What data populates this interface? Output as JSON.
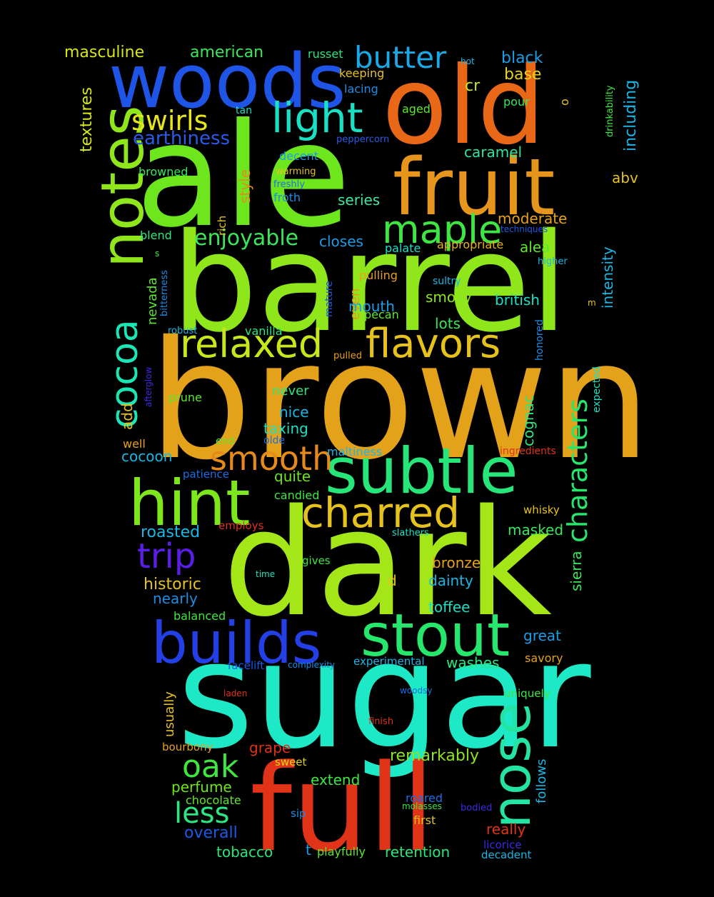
{
  "words": [
    {
      "text": "brown",
      "color": "#e3a21a"
    },
    {
      "text": "sugar",
      "color": "#1de9c6"
    },
    {
      "text": "dark",
      "color": "#a5e619"
    },
    {
      "text": "barrel",
      "color": "#8ee61b"
    },
    {
      "text": "ale",
      "color": "#6de61d"
    },
    {
      "text": "full",
      "color": "#e03318"
    },
    {
      "text": "old",
      "color": "#e86818"
    },
    {
      "text": "woods",
      "color": "#1f55e6"
    },
    {
      "text": "fruit",
      "color": "#e6961c"
    },
    {
      "text": "subtle",
      "color": "#26e67a"
    },
    {
      "text": "hint",
      "color": "#7ee61c"
    },
    {
      "text": "stout",
      "color": "#26e66c"
    },
    {
      "text": "builds",
      "color": "#2340e6"
    },
    {
      "text": "notes",
      "color": "#8ee61b"
    },
    {
      "text": "nose",
      "color": "#23e4a3"
    },
    {
      "text": "flavors",
      "color": "#e6c21b"
    },
    {
      "text": "charred",
      "color": "#e6c21b"
    },
    {
      "text": "relaxed",
      "color": "#c8e61b"
    },
    {
      "text": "cocoa",
      "color": "#1ae6b6"
    },
    {
      "text": "maple",
      "color": "#3ee641"
    },
    {
      "text": "light",
      "color": "#1ae0c4"
    },
    {
      "text": "smooth",
      "color": "#e68a1b"
    },
    {
      "text": "butter",
      "color": "#1aa8e6"
    },
    {
      "text": "trip",
      "color": "#5a1ee6"
    },
    {
      "text": "swirls",
      "color": "#e6e61b"
    },
    {
      "text": "oak",
      "color": "#3fe63f"
    },
    {
      "text": "less",
      "color": "#2ce680"
    },
    {
      "text": "characters",
      "color": "#26e66c"
    },
    {
      "text": "enjoyable",
      "color": "#3ae65a"
    },
    {
      "text": "earthiness",
      "color": "#2a5ae6"
    },
    {
      "text": "masculine",
      "color": "#d6e61b"
    },
    {
      "text": "american",
      "color": "#3ae65a"
    },
    {
      "text": "russet",
      "color": "#2ce680"
    },
    {
      "text": "keeping",
      "color": "#e6c21b"
    },
    {
      "text": "lacing",
      "color": "#1a8ee6"
    },
    {
      "text": "aged",
      "color": "#5ee62c"
    },
    {
      "text": "black",
      "color": "#1a9ee6"
    },
    {
      "text": "base",
      "color": "#e6d21b"
    },
    {
      "text": "hot",
      "color": "#1ab6e6"
    },
    {
      "text": "cr",
      "color": "#c8e61b"
    },
    {
      "text": "pour",
      "color": "#3ae65a"
    },
    {
      "text": "o",
      "color": "#e6c21b"
    },
    {
      "text": "drinkability",
      "color": "#3ee641"
    },
    {
      "text": "including",
      "color": "#1ab6e6"
    },
    {
      "text": "textures",
      "color": "#d6e61b"
    },
    {
      "text": "tan",
      "color": "#1ae0c4"
    },
    {
      "text": "peppercorn",
      "color": "#2a5ae6"
    },
    {
      "text": "decent",
      "color": "#1a9ee6"
    },
    {
      "text": "warming",
      "color": "#e6c21b"
    },
    {
      "text": "freshly",
      "color": "#1a6ee6"
    },
    {
      "text": "froth",
      "color": "#1a8ee6"
    },
    {
      "text": "style",
      "color": "#e68a1b"
    },
    {
      "text": "rich",
      "color": "#e6c21b"
    },
    {
      "text": "caramel",
      "color": "#2ce6a0"
    },
    {
      "text": "series",
      "color": "#3ee6a0"
    },
    {
      "text": "abv",
      "color": "#e6c21b"
    },
    {
      "text": "browned",
      "color": "#3ae65a"
    },
    {
      "text": "add",
      "color": "#e6c21b"
    },
    {
      "text": "moderate",
      "color": "#e6a21b"
    },
    {
      "text": "techniques",
      "color": "#1a5ae6"
    },
    {
      "text": "blend",
      "color": "#2ce680"
    },
    {
      "text": "closes",
      "color": "#1a9ee6"
    },
    {
      "text": "palate",
      "color": "#1ae0c4"
    },
    {
      "text": "appropriate",
      "color": "#e6b21b"
    },
    {
      "text": "alea",
      "color": "#5ee62c"
    },
    {
      "text": "higher",
      "color": "#1ab6e6"
    },
    {
      "text": "intensity",
      "color": "#1ab6e6"
    },
    {
      "text": "s",
      "color": "#3ee641"
    },
    {
      "text": "nevada",
      "color": "#5ee62c"
    },
    {
      "text": "bitterness",
      "color": "#1a8ee6"
    },
    {
      "text": "mature",
      "color": "#1a5ae6"
    },
    {
      "text": "pulling",
      "color": "#e6a21b"
    },
    {
      "text": "sultry",
      "color": "#1ab6e6"
    },
    {
      "text": "even",
      "color": "#e6961c"
    },
    {
      "text": "mouth",
      "color": "#1a9ee6"
    },
    {
      "text": "pecan",
      "color": "#5ee62c"
    },
    {
      "text": "smoky",
      "color": "#8ee61b"
    },
    {
      "text": "british",
      "color": "#1ae0c4"
    },
    {
      "text": "m",
      "color": "#e6c21b"
    },
    {
      "text": "lots",
      "color": "#3ae65a"
    },
    {
      "text": "robust",
      "color": "#1ab6e6"
    },
    {
      "text": "vanilla",
      "color": "#2ce680"
    },
    {
      "text": "honored",
      "color": "#1a8ee6"
    },
    {
      "text": "pulled",
      "color": "#e6a21b"
    },
    {
      "text": "afterglow",
      "color": "#3a2ae6"
    },
    {
      "text": "expected",
      "color": "#1ae0c4"
    },
    {
      "text": "prune",
      "color": "#5ee62c"
    },
    {
      "text": "never",
      "color": "#2ce680"
    },
    {
      "text": "cognac",
      "color": "#2ce680"
    },
    {
      "text": "nice",
      "color": "#1ab6e6"
    },
    {
      "text": "taxing",
      "color": "#1ae0c4"
    },
    {
      "text": "end",
      "color": "#5ee62c"
    },
    {
      "text": "olde",
      "color": "#1a6ee6"
    },
    {
      "text": "well",
      "color": "#e6a21b"
    },
    {
      "text": "cocoon",
      "color": "#1ab6e6"
    },
    {
      "text": "maltiness",
      "color": "#1ab6e6"
    },
    {
      "text": "ingredients",
      "color": "#e03318"
    },
    {
      "text": "patience",
      "color": "#1a6ee6"
    },
    {
      "text": "quite",
      "color": "#6de61d"
    },
    {
      "text": "candied",
      "color": "#3ee641"
    },
    {
      "text": "whisky",
      "color": "#e6c21b"
    },
    {
      "text": "roasted",
      "color": "#1ab6e6"
    },
    {
      "text": "employs",
      "color": "#e03318"
    },
    {
      "text": "slathers",
      "color": "#1ae0c4"
    },
    {
      "text": "masked",
      "color": "#3ae65a"
    },
    {
      "text": "sierra",
      "color": "#3ae65a"
    },
    {
      "text": "gives",
      "color": "#3ee641"
    },
    {
      "text": "bronze",
      "color": "#e6a21b"
    },
    {
      "text": "historic",
      "color": "#e6c21b"
    },
    {
      "text": "time",
      "color": "#1ae0c4"
    },
    {
      "text": "d",
      "color": "#e6c21b"
    },
    {
      "text": "dainty",
      "color": "#1ab6e6"
    },
    {
      "text": "nearly",
      "color": "#1a8ee6"
    },
    {
      "text": "toffee",
      "color": "#1ae0c4"
    },
    {
      "text": "balanced",
      "color": "#3ee641"
    },
    {
      "text": "great",
      "color": "#1a9ee6"
    },
    {
      "text": "facelift",
      "color": "#1a5ae6"
    },
    {
      "text": "complexity",
      "color": "#1a8ee6"
    },
    {
      "text": "experimental",
      "color": "#1ab6e6"
    },
    {
      "text": "washes",
      "color": "#2ce680"
    },
    {
      "text": "savory",
      "color": "#e6a21b"
    },
    {
      "text": "usually",
      "color": "#e6c21b"
    },
    {
      "text": "laden",
      "color": "#e03318"
    },
    {
      "text": "woodsy",
      "color": "#1a6ee6"
    },
    {
      "text": "uniquely",
      "color": "#3ee641"
    },
    {
      "text": "finish",
      "color": "#e03318"
    },
    {
      "text": "follows",
      "color": "#1ab6e6"
    },
    {
      "text": "bourbony",
      "color": "#e6a21b"
    },
    {
      "text": "grape",
      "color": "#e03318"
    },
    {
      "text": "sweet",
      "color": "#e6d21b"
    },
    {
      "text": "remarkably",
      "color": "#8ee61b"
    },
    {
      "text": "extend",
      "color": "#3ee641"
    },
    {
      "text": "perfume",
      "color": "#6de61d"
    },
    {
      "text": "chocolate",
      "color": "#5ee62c"
    },
    {
      "text": "roared",
      "color": "#1a6ee6"
    },
    {
      "text": "molasses",
      "color": "#3ee641"
    },
    {
      "text": "bodied",
      "color": "#3a2ae6"
    },
    {
      "text": "sip",
      "color": "#1a8ee6"
    },
    {
      "text": "first",
      "color": "#e6c21b"
    },
    {
      "text": "overall",
      "color": "#1a5ae6"
    },
    {
      "text": "really",
      "color": "#e03318"
    },
    {
      "text": "tobacco",
      "color": "#26e67a"
    },
    {
      "text": "t",
      "color": "#1a9ee6"
    },
    {
      "text": "playfully",
      "color": "#5ee62c"
    },
    {
      "text": "retention",
      "color": "#26e67a"
    },
    {
      "text": "licorice",
      "color": "#3a2ae6"
    },
    {
      "text": "decadent",
      "color": "#1ab6e6"
    }
  ]
}
